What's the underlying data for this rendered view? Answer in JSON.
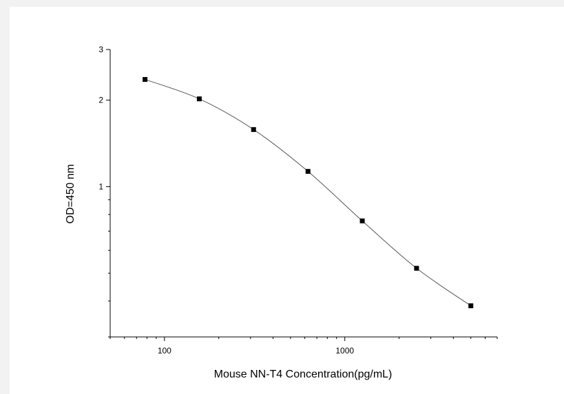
{
  "chart_data": {
    "type": "scatter",
    "xlabel": "Mouse NN-T4  Concentration(pg/mL)",
    "ylabel": "OD=450 nm",
    "x_scale": "log",
    "y_scale": "log",
    "xlim": [
      50,
      7000
    ],
    "ylim": [
      0.3,
      3
    ],
    "x_ticks": [
      100,
      1000
    ],
    "x_tick_labels": [
      "100",
      "1000"
    ],
    "y_ticks": [
      1,
      2,
      3
    ],
    "y_tick_labels": [
      "1",
      "2",
      "3"
    ],
    "grid": false,
    "legend": "none",
    "series": [
      {
        "x": [
          78,
          156,
          312,
          625,
          1250,
          2500,
          5000
        ],
        "y": [
          2.36,
          2.02,
          1.58,
          1.13,
          0.76,
          0.52,
          0.385
        ]
      }
    ],
    "colors": {
      "marker": "#000000",
      "line": "#555555",
      "axis": "#000000"
    }
  }
}
